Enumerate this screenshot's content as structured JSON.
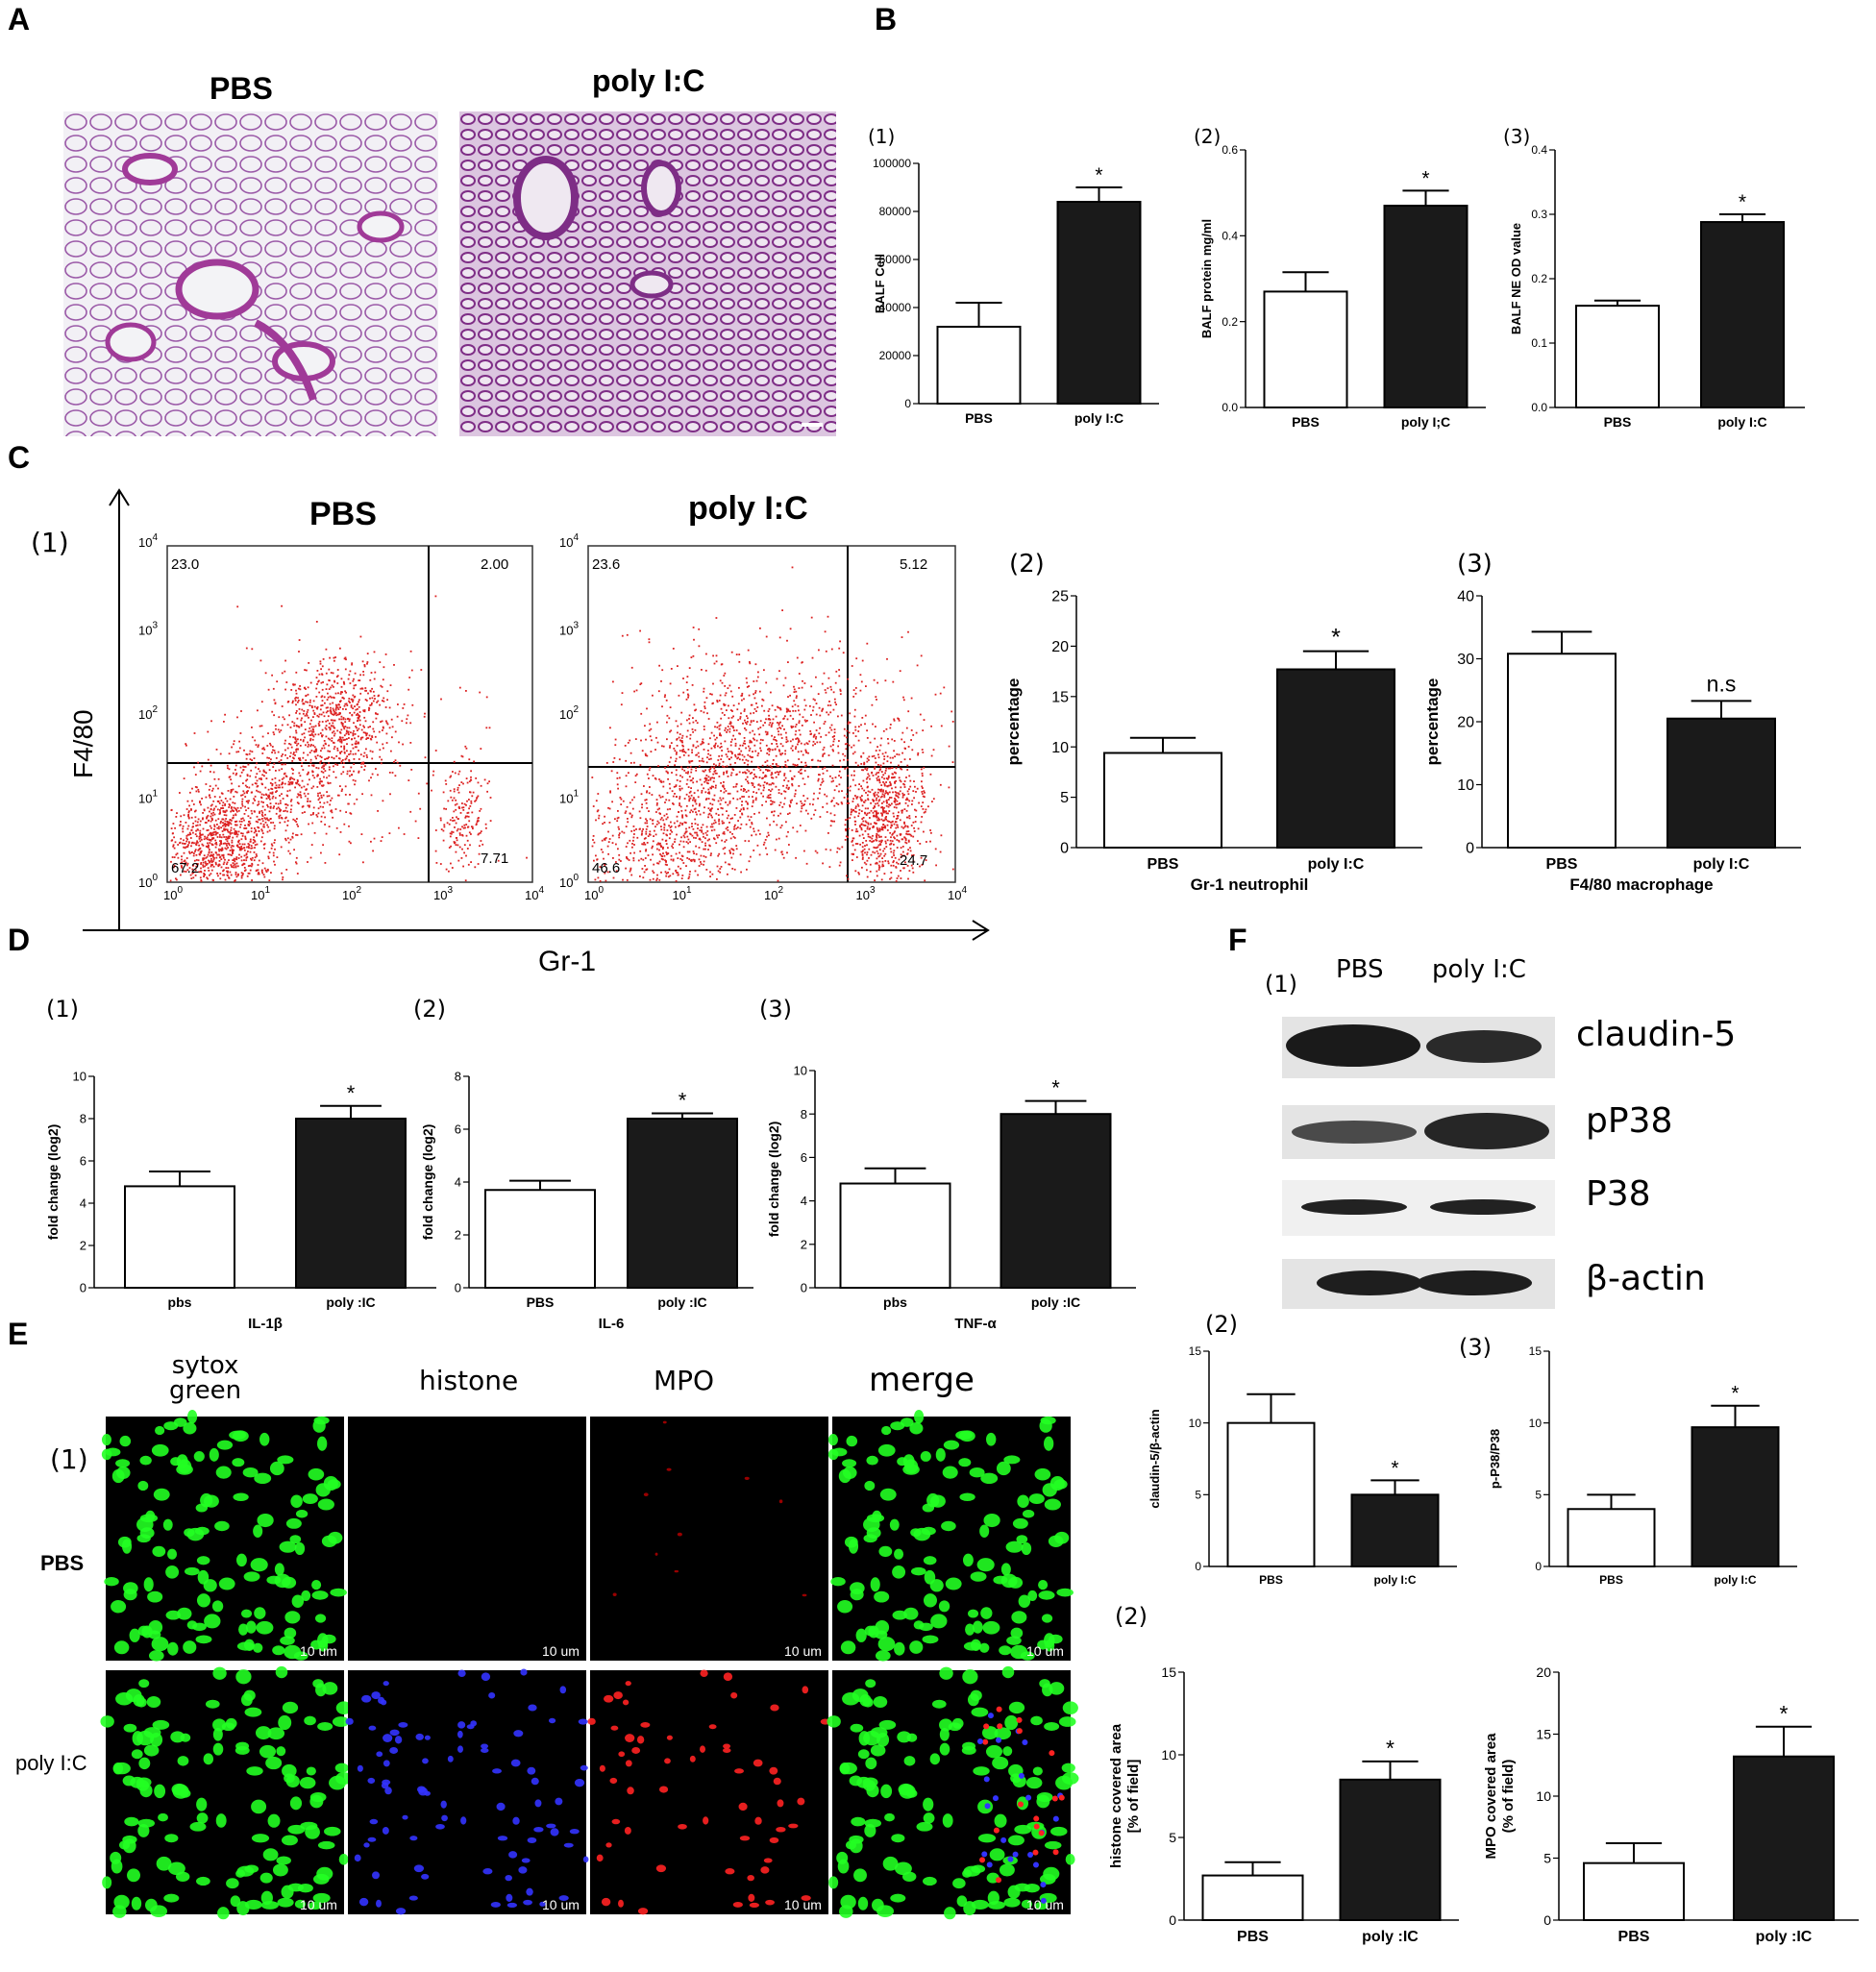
{
  "panel_labels": {
    "A": "A",
    "B": "B",
    "C": "C",
    "D": "D",
    "E": "E",
    "F": "F"
  },
  "sub_labels": {
    "b1": "(1)",
    "b2": "(2)",
    "b3": "(3)",
    "c1": "(1)",
    "c2": "(2)",
    "c3": "(3)",
    "d1": "(1)",
    "d2": "(2)",
    "d3": "(3)",
    "e1": "(1)",
    "e2": "(2)",
    "f1": "(1)",
    "f2": "(2)",
    "f3": "(3)"
  },
  "panelA": {
    "title_pbs": "PBS",
    "title_polyic": "poly I:C"
  },
  "panelC": {
    "title_pbs": "PBS",
    "title_polyic": "poly I:C",
    "yaxis": "F4/80",
    "xaxis": "Gr-1",
    "pbs_quadrants": {
      "ul": "23.0",
      "ur": "2.00",
      "ll": "67.2",
      "lr": "7.71"
    },
    "polyic_quadrants": {
      "ul": "23.6",
      "ur": "5.12",
      "ll": "46.6",
      "lr": "24.7"
    },
    "ticks": [
      "10",
      "0",
      "1",
      "2",
      "3",
      "4"
    ]
  },
  "panelE": {
    "col_headers": [
      "sytox\ngreen",
      "histone",
      "MPO",
      "merge"
    ],
    "row_labels": [
      "PBS",
      "poly I:C"
    ],
    "scale_label": "10 um"
  },
  "panelF": {
    "lane_labels": [
      "PBS",
      "poly I:C"
    ],
    "blot_labels": [
      "claudin-5",
      "pP38",
      "P38",
      "β-actin"
    ]
  },
  "chart_data": [
    {
      "id": "B1",
      "type": "bar",
      "categories": [
        "PBS",
        "poly I:C"
      ],
      "values": [
        32000,
        84000
      ],
      "errors": [
        10000,
        6000
      ],
      "ylabel": "BALF Cell",
      "ylim": [
        0,
        100000
      ],
      "ticks": [
        0,
        20000,
        40000,
        60000,
        80000,
        100000
      ],
      "annotations": [
        "",
        "*"
      ]
    },
    {
      "id": "B2",
      "type": "bar",
      "categories": [
        "PBS",
        "poly I;C"
      ],
      "values": [
        0.27,
        0.47
      ],
      "errors": [
        0.045,
        0.035
      ],
      "ylabel": "BALF protein mg/ml",
      "ylim": [
        0,
        0.6
      ],
      "ticks": [
        "0.0",
        "0.2",
        "0.4",
        "0.6"
      ],
      "annotations": [
        "",
        "*"
      ]
    },
    {
      "id": "B3",
      "type": "bar",
      "categories": [
        "PBS",
        "poly I:C"
      ],
      "values": [
        0.158,
        0.288
      ],
      "errors": [
        0.008,
        0.012
      ],
      "ylabel": "BALF NE   OD value",
      "ylim": [
        0,
        0.4
      ],
      "ticks": [
        "0.0",
        "0.1",
        "0.2",
        "0.3",
        "0.4"
      ],
      "annotations": [
        "",
        "*"
      ]
    },
    {
      "id": "C2",
      "type": "bar",
      "categories": [
        "PBS",
        "poly I:C"
      ],
      "values": [
        9.4,
        17.7
      ],
      "errors": [
        1.5,
        1.8
      ],
      "ylabel": "percentage",
      "xlabel": "Gr-1 neutrophil",
      "ylim": [
        0,
        25
      ],
      "ticks": [
        0,
        5,
        10,
        15,
        20,
        25
      ],
      "annotations": [
        "",
        "*"
      ]
    },
    {
      "id": "C3",
      "type": "bar",
      "categories": [
        "PBS",
        "poly I:C"
      ],
      "values": [
        30.8,
        20.5
      ],
      "errors": [
        3.5,
        2.8
      ],
      "ylabel": "percentage",
      "xlabel": "F4/80 macrophage",
      "ylim": [
        0,
        40
      ],
      "ticks": [
        0,
        10,
        20,
        30,
        40
      ],
      "annotations": [
        "",
        "n.s"
      ]
    },
    {
      "id": "D1",
      "type": "bar",
      "categories": [
        "pbs",
        "poly :IC"
      ],
      "values": [
        4.8,
        8.0
      ],
      "errors": [
        0.7,
        0.6
      ],
      "ylabel": "fold change (log2)",
      "xlabel": "IL-1β",
      "ylim": [
        0,
        10
      ],
      "ticks": [
        0,
        2,
        4,
        6,
        8,
        10
      ],
      "annotations": [
        "",
        "*"
      ]
    },
    {
      "id": "D2",
      "type": "bar",
      "categories": [
        "PBS",
        "poly :IC"
      ],
      "values": [
        3.7,
        6.4
      ],
      "errors": [
        0.35,
        0.2
      ],
      "ylabel": "fold change (log2)",
      "xlabel": "IL-6",
      "ylim": [
        0,
        8
      ],
      "ticks": [
        0,
        2,
        4,
        6,
        8
      ],
      "annotations": [
        "",
        "*"
      ]
    },
    {
      "id": "D3",
      "type": "bar",
      "categories": [
        "pbs",
        "poly :IC"
      ],
      "values": [
        4.8,
        8.0
      ],
      "errors": [
        0.7,
        0.6
      ],
      "ylabel": "fold change (log2)",
      "xlabel": "TNF-α",
      "ylim": [
        0,
        10
      ],
      "ticks": [
        0,
        2,
        4,
        6,
        8,
        10
      ],
      "annotations": [
        "",
        "*"
      ]
    },
    {
      "id": "E2a",
      "type": "bar",
      "categories": [
        "PBS",
        "poly :IC"
      ],
      "values": [
        2.7,
        8.5
      ],
      "errors": [
        0.8,
        1.1
      ],
      "ylabel": "histone covered area\n[% of field]",
      "ylim": [
        0,
        15
      ],
      "ticks": [
        0,
        5,
        10,
        15
      ],
      "annotations": [
        "",
        "*"
      ]
    },
    {
      "id": "E2b",
      "type": "bar",
      "categories": [
        "PBS",
        "poly :IC"
      ],
      "values": [
        4.6,
        13.2
      ],
      "errors": [
        1.6,
        2.4
      ],
      "ylabel": "MPO covered area\n(% of field)",
      "ylim": [
        0,
        20
      ],
      "ticks": [
        0,
        5,
        10,
        15,
        20
      ],
      "annotations": [
        "",
        "*"
      ]
    },
    {
      "id": "F2",
      "type": "bar",
      "categories": [
        "PBS",
        "poly I:C"
      ],
      "values": [
        10.0,
        5.0
      ],
      "errors": [
        2.0,
        1.0
      ],
      "ylabel": "claudin-5/β-actin",
      "ylim": [
        0,
        15
      ],
      "ticks": [
        0,
        5,
        10,
        15
      ],
      "annotations": [
        "",
        "*"
      ]
    },
    {
      "id": "F3",
      "type": "bar",
      "categories": [
        "PBS",
        "poly I:C"
      ],
      "values": [
        4.0,
        9.7
      ],
      "errors": [
        1.0,
        1.5
      ],
      "ylabel": "p-P38/P38",
      "ylim": [
        0,
        15
      ],
      "ticks": [
        0,
        5,
        10,
        15
      ],
      "annotations": [
        "",
        "*"
      ]
    }
  ]
}
